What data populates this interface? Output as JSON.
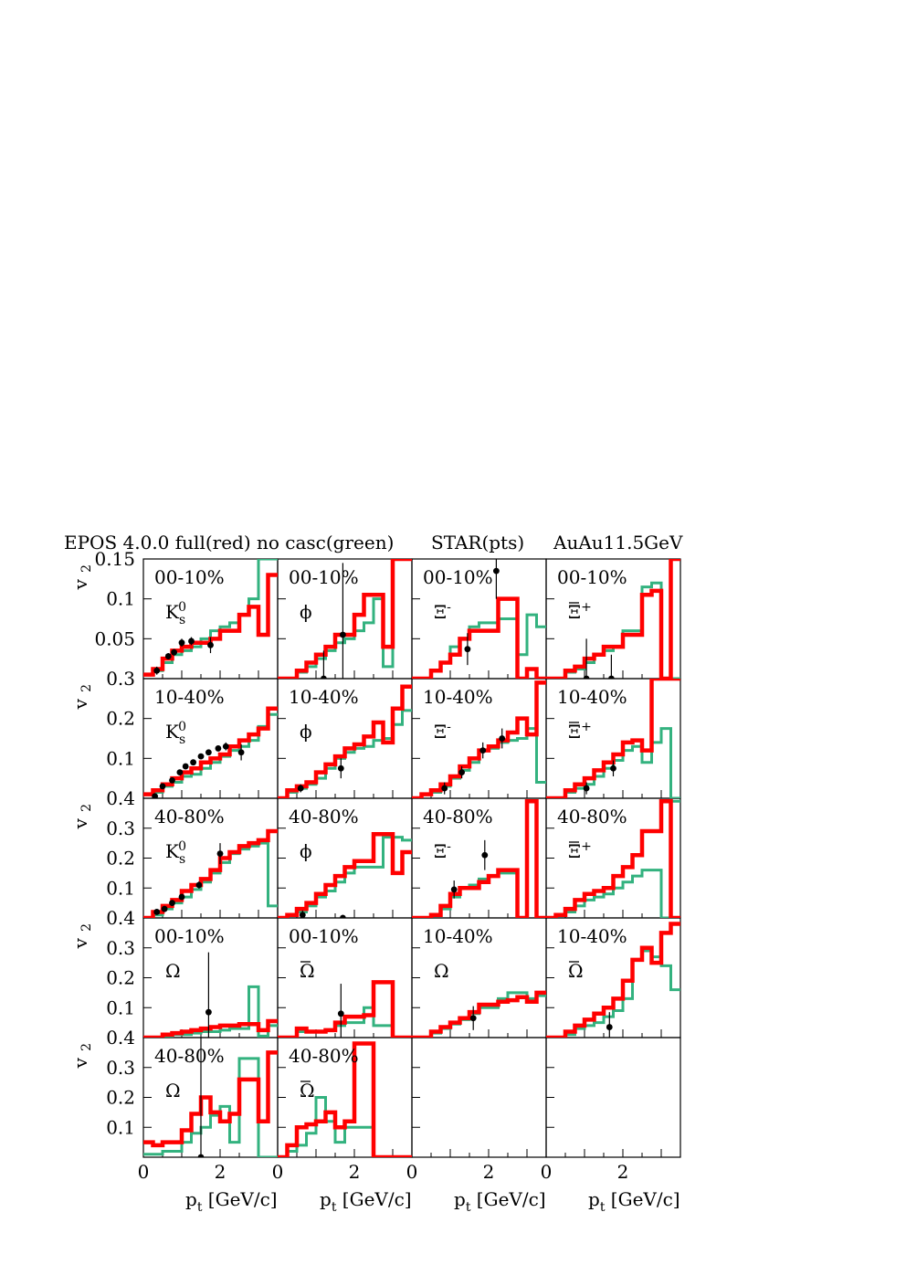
{
  "header": {
    "left": "EPOS 4.0.0   full(red)  no casc(green)",
    "middle": "STAR(pts)",
    "right": "AuAu11.5GeV"
  },
  "colors": {
    "full": "#ff0000",
    "nocasc": "#33b27f",
    "points": "#000000"
  },
  "axes": {
    "ylabel": "v",
    "ylabel_sub": "2",
    "xlabel": "p",
    "xlabel_sub": "t",
    "xlabel_unit": " [GeV/c]",
    "x_ticks": [
      "0",
      "2"
    ],
    "x_last_col_ticks": [
      "0",
      "2"
    ],
    "row_tick_labels": [
      [
        "0.15",
        "0.1",
        "0.05",
        "0.3"
      ],
      [
        "0.2",
        "0.1",
        "0.4"
      ],
      [
        "0.3",
        "0.2",
        "0.1",
        "0.4"
      ],
      [
        "0.3",
        "0.2",
        "0.1",
        "0.4"
      ],
      [
        "0.3",
        "0.2",
        "0.1"
      ]
    ]
  },
  "chart_data": {
    "type": "bar",
    "description_kind": "histogram grid",
    "x_bin_edges": [
      0,
      0.25,
      0.5,
      0.75,
      1.0,
      1.25,
      1.5,
      1.75,
      2.0,
      2.25,
      2.5,
      2.75,
      3.0,
      3.25,
      3.5
    ],
    "xlim": [
      0,
      3.5
    ],
    "rows": [
      {
        "ylim": [
          0,
          0.15
        ],
        "yticks": [
          0.05,
          0.1,
          0.15
        ]
      },
      {
        "ylim": [
          0,
          0.3
        ],
        "yticks": [
          0.1,
          0.2
        ]
      },
      {
        "ylim": [
          0,
          0.4
        ],
        "yticks": [
          0.1,
          0.2,
          0.3
        ]
      },
      {
        "ylim": [
          0,
          0.4
        ],
        "yticks": [
          0.1,
          0.2,
          0.3
        ]
      },
      {
        "ylim": [
          0,
          0.4
        ],
        "yticks": [
          0.1,
          0.2,
          0.3
        ]
      }
    ],
    "panels": [
      {
        "row": 0,
        "col": 0,
        "centrality": "00-10%",
        "particle": "K",
        "sub": "s",
        "sup": "0",
        "full": [
          0.005,
          0.012,
          0.025,
          0.035,
          0.04,
          0.045,
          0.045,
          0.05,
          0.06,
          0.06,
          0.08,
          0.09,
          0.055,
          0.13
        ],
        "nocasc": [
          0.005,
          0.01,
          0.02,
          0.03,
          0.035,
          0.04,
          0.05,
          0.06,
          0.065,
          0.07,
          0.08,
          0.1,
          0.15,
          0.15
        ],
        "points": [
          [
            0.35,
            0.01,
            0.005
          ],
          [
            0.65,
            0.028,
            0.004
          ],
          [
            0.8,
            0.033,
            0.004
          ],
          [
            1.0,
            0.045,
            0.005
          ],
          [
            1.25,
            0.047,
            0.005
          ],
          [
            1.75,
            0.042,
            0.01
          ]
        ]
      },
      {
        "row": 0,
        "col": 1,
        "centrality": "00-10%",
        "particle": "ϕ",
        "sub": "",
        "sup": "",
        "full": [
          0.0,
          0.0,
          0.01,
          0.02,
          0.03,
          0.04,
          0.055,
          0.055,
          0.08,
          0.105,
          0.105,
          0.04,
          0.15,
          0.2
        ],
        "nocasc": [
          0.0,
          0.0,
          0.008,
          0.015,
          0.025,
          0.035,
          0.045,
          0.05,
          0.06,
          0.07,
          0.1,
          0.015,
          0.15,
          0.2
        ],
        "points": [
          [
            1.2,
            0.0,
            0.035
          ],
          [
            1.7,
            0.055,
            0.09
          ]
        ]
      },
      {
        "row": 0,
        "col": 2,
        "centrality": "00-10%",
        "particle": "Ξ",
        "sub": "",
        "sup": "-",
        "full": [
          0.0,
          0.0,
          0.01,
          0.02,
          0.03,
          0.05,
          0.06,
          0.06,
          0.06,
          0.1,
          0.1,
          0.0,
          0.012,
          0.0
        ],
        "nocasc": [
          0.0,
          0.0,
          0.01,
          0.02,
          0.04,
          0.05,
          0.065,
          0.07,
          0.07,
          0.075,
          0.075,
          0.03,
          0.08,
          0.065
        ],
        "points": [
          [
            1.45,
            0.037,
            0.02
          ],
          [
            2.2,
            0.135,
            0.035
          ]
        ]
      },
      {
        "row": 0,
        "col": 3,
        "centrality": "00-10%",
        "particle": "Ξ",
        "sub": "",
        "sup": "+",
        "bar": true,
        "full": [
          0.0,
          0.0,
          0.01,
          0.015,
          0.025,
          0.03,
          0.04,
          0.04,
          0.055,
          0.055,
          0.105,
          0.11,
          0.0,
          0.15
        ],
        "nocasc": [
          0.0,
          0.0,
          0.008,
          0.012,
          0.02,
          0.03,
          0.035,
          0.04,
          0.06,
          0.06,
          0.115,
          0.12,
          0.0,
          0.0
        ],
        "points": [
          [
            1.05,
            0.0,
            0.05
          ],
          [
            1.7,
            0.0,
            0.03
          ]
        ]
      },
      {
        "row": 1,
        "col": 0,
        "centrality": "10-40%",
        "particle": "K",
        "sub": "s",
        "sup": "0",
        "full": [
          0.01,
          0.02,
          0.035,
          0.05,
          0.065,
          0.075,
          0.09,
          0.1,
          0.11,
          0.13,
          0.145,
          0.16,
          0.175,
          0.225
        ],
        "nocasc": [
          0.01,
          0.015,
          0.03,
          0.04,
          0.055,
          0.06,
          0.075,
          0.09,
          0.105,
          0.12,
          0.13,
          0.145,
          0.18,
          0.21
        ],
        "points": [
          [
            0.3,
            0.005,
            0.004
          ],
          [
            0.5,
            0.03,
            0.004
          ],
          [
            0.75,
            0.045,
            0.004
          ],
          [
            0.95,
            0.065,
            0.004
          ],
          [
            1.1,
            0.08,
            0.004
          ],
          [
            1.3,
            0.09,
            0.005
          ],
          [
            1.5,
            0.105,
            0.005
          ],
          [
            1.7,
            0.115,
            0.006
          ],
          [
            1.95,
            0.125,
            0.007
          ],
          [
            2.15,
            0.13,
            0.01
          ],
          [
            2.55,
            0.115,
            0.02
          ]
        ]
      },
      {
        "row": 1,
        "col": 1,
        "centrality": "10-40%",
        "particle": "ϕ",
        "sub": "",
        "sup": "",
        "full": [
          0.0,
          0.02,
          0.03,
          0.04,
          0.065,
          0.085,
          0.105,
          0.125,
          0.135,
          0.155,
          0.19,
          0.14,
          0.225,
          0.28
        ],
        "nocasc": [
          0.0,
          0.015,
          0.025,
          0.035,
          0.05,
          0.075,
          0.1,
          0.115,
          0.125,
          0.13,
          0.145,
          0.15,
          0.185,
          0.22
        ],
        "points": [
          [
            0.6,
            0.025,
            0.01
          ],
          [
            1.65,
            0.075,
            0.025
          ]
        ]
      },
      {
        "row": 1,
        "col": 2,
        "centrality": "10-40%",
        "particle": "Ξ",
        "sub": "",
        "sup": "-",
        "full": [
          0.0,
          0.01,
          0.02,
          0.035,
          0.055,
          0.08,
          0.1,
          0.12,
          0.13,
          0.145,
          0.165,
          0.2,
          0.16,
          0.29
        ],
        "nocasc": [
          0.0,
          0.01,
          0.015,
          0.03,
          0.05,
          0.07,
          0.09,
          0.12,
          0.125,
          0.14,
          0.145,
          0.15,
          0.175,
          0.04
        ],
        "points": [
          [
            0.85,
            0.025,
            0.015
          ],
          [
            1.3,
            0.065,
            0.015
          ],
          [
            1.85,
            0.12,
            0.02
          ],
          [
            2.35,
            0.15,
            0.025
          ]
        ]
      },
      {
        "row": 1,
        "col": 3,
        "centrality": "10-40%",
        "particle": "Ξ",
        "sub": "",
        "sup": "+",
        "bar": true,
        "full": [
          0.0,
          0.0,
          0.02,
          0.035,
          0.05,
          0.07,
          0.09,
          0.11,
          0.14,
          0.145,
          0.12,
          0.3,
          0.3,
          0.3
        ],
        "nocasc": [
          0.0,
          0.0,
          0.015,
          0.025,
          0.035,
          0.055,
          0.075,
          0.095,
          0.12,
          0.13,
          0.09,
          0.14,
          0.175,
          0.0
        ],
        "points": [
          [
            1.05,
            0.025,
            0.015
          ],
          [
            1.75,
            0.075,
            0.02
          ]
        ]
      },
      {
        "row": 2,
        "col": 0,
        "centrality": "40-80%",
        "particle": "K",
        "sub": "s",
        "sup": "0",
        "full": [
          0.0,
          0.02,
          0.04,
          0.06,
          0.09,
          0.11,
          0.13,
          0.16,
          0.2,
          0.22,
          0.24,
          0.25,
          0.26,
          0.29
        ],
        "nocasc": [
          0.0,
          0.01,
          0.03,
          0.05,
          0.07,
          0.095,
          0.12,
          0.15,
          0.185,
          0.215,
          0.23,
          0.24,
          0.25,
          0.04
        ],
        "points": [
          [
            0.35,
            0.02,
            0.008
          ],
          [
            0.55,
            0.03,
            0.008
          ],
          [
            0.75,
            0.05,
            0.01
          ],
          [
            1.0,
            0.07,
            0.01
          ],
          [
            1.45,
            0.11,
            0.012
          ],
          [
            2.0,
            0.215,
            0.035
          ]
        ]
      },
      {
        "row": 2,
        "col": 1,
        "centrality": "40-80%",
        "particle": "ϕ",
        "sub": "",
        "sup": "",
        "full": [
          0.0,
          0.01,
          0.03,
          0.05,
          0.08,
          0.11,
          0.14,
          0.17,
          0.19,
          0.19,
          0.28,
          0.28,
          0.15,
          0.22
        ],
        "nocasc": [
          0.0,
          0.01,
          0.02,
          0.04,
          0.07,
          0.09,
          0.12,
          0.15,
          0.17,
          0.17,
          0.17,
          0.27,
          0.27,
          0.26
        ],
        "points": [
          [
            0.65,
            0.01,
            0.015
          ],
          [
            1.7,
            0.0,
            0.01
          ]
        ]
      },
      {
        "row": 2,
        "col": 2,
        "centrality": "40-80%",
        "particle": "Ξ",
        "sub": "",
        "sup": "-",
        "full": [
          0.0,
          0.0,
          0.01,
          0.04,
          0.08,
          0.1,
          0.1,
          0.12,
          0.14,
          0.16,
          0.16,
          0.0,
          0.39,
          0.0
        ],
        "nocasc": [
          0.0,
          0.0,
          0.01,
          0.03,
          0.07,
          0.1,
          0.11,
          0.13,
          0.14,
          0.15,
          0.15,
          0.0,
          0.39,
          0.0
        ],
        "points": [
          [
            1.1,
            0.095,
            0.03
          ],
          [
            1.9,
            0.21,
            0.05
          ]
        ]
      },
      {
        "row": 2,
        "col": 3,
        "centrality": "40-80%",
        "particle": "Ξ",
        "sub": "",
        "sup": "+",
        "bar": true,
        "full": [
          0.0,
          0.01,
          0.03,
          0.06,
          0.08,
          0.09,
          0.1,
          0.14,
          0.17,
          0.21,
          0.29,
          0.29,
          0.39,
          0.0
        ],
        "nocasc": [
          0.0,
          0.01,
          0.02,
          0.04,
          0.06,
          0.07,
          0.08,
          0.1,
          0.12,
          0.14,
          0.16,
          0.16,
          0.0,
          0.39
        ],
        "points": []
      },
      {
        "row": 3,
        "col": 0,
        "centrality": "00-10%",
        "particle": "Ω",
        "sub": "",
        "sup": "",
        "full": [
          0.0,
          0.0,
          0.01,
          0.015,
          0.02,
          0.025,
          0.03,
          0.035,
          0.04,
          0.04,
          0.045,
          0.045,
          0.025,
          0.055
        ],
        "nocasc": [
          0.0,
          0.0,
          0.005,
          0.01,
          0.01,
          0.015,
          0.02,
          0.02,
          0.025,
          0.03,
          0.03,
          0.17,
          0.005,
          0.04
        ],
        "points": [
          [
            1.7,
            0.085,
            0.2
          ]
        ]
      },
      {
        "row": 3,
        "col": 1,
        "centrality": "00-10%",
        "particle": "Ω",
        "sub": "",
        "sup": "",
        "bar": true,
        "full": [
          0.0,
          0.0,
          0.03,
          0.02,
          0.02,
          0.025,
          0.05,
          0.07,
          0.07,
          0.075,
          0.185,
          0.185,
          0.0,
          0.0
        ],
        "nocasc": [
          0.0,
          0.0,
          0.02,
          0.02,
          0.02,
          0.025,
          0.04,
          0.05,
          0.05,
          0.1,
          0.04,
          0.04,
          0.0,
          0.0
        ],
        "points": [
          [
            1.65,
            0.08,
            0.1
          ]
        ]
      },
      {
        "row": 3,
        "col": 2,
        "centrality": "10-40%",
        "particle": "Ω",
        "sub": "",
        "sup": "",
        "full": [
          0.0,
          0.0,
          0.02,
          0.035,
          0.05,
          0.065,
          0.085,
          0.11,
          0.11,
          0.12,
          0.125,
          0.135,
          0.12,
          0.15
        ],
        "nocasc": [
          0.0,
          0.0,
          0.015,
          0.03,
          0.045,
          0.06,
          0.08,
          0.1,
          0.1,
          0.13,
          0.15,
          0.15,
          0.13,
          0.14
        ],
        "points": [
          [
            1.6,
            0.065,
            0.04
          ]
        ]
      },
      {
        "row": 3,
        "col": 3,
        "centrality": "10-40%",
        "particle": "Ω",
        "sub": "",
        "sup": "",
        "bar": true,
        "full": [
          0.0,
          0.0,
          0.02,
          0.04,
          0.06,
          0.08,
          0.1,
          0.13,
          0.19,
          0.26,
          0.3,
          0.25,
          0.35,
          0.38
        ],
        "nocasc": [
          0.0,
          0.0,
          0.01,
          0.03,
          0.04,
          0.05,
          0.07,
          0.09,
          0.13,
          0.26,
          0.29,
          0.27,
          0.24,
          0.16
        ],
        "points": [
          [
            1.65,
            0.035,
            0.05
          ]
        ]
      },
      {
        "row": 4,
        "col": 0,
        "centrality": "40-80%",
        "particle": "Ω",
        "sub": "",
        "sup": "",
        "full": [
          0.05,
          0.04,
          0.05,
          0.05,
          0.09,
          0.145,
          0.2,
          0.15,
          0.12,
          0.145,
          0.26,
          0.26,
          0.12,
          0.35
        ],
        "nocasc": [
          0.01,
          0.01,
          0.02,
          0.02,
          0.05,
          0.08,
          0.1,
          0.14,
          0.17,
          0.05,
          0.33,
          0.33,
          0.0,
          0.0
        ],
        "points": [
          [
            1.5,
            0.0,
            0.4
          ]
        ]
      },
      {
        "row": 4,
        "col": 1,
        "centrality": "40-80%",
        "particle": "Ω",
        "sub": "",
        "sup": "",
        "bar": true,
        "full": [
          0.0,
          0.04,
          0.1,
          0.11,
          0.12,
          0.15,
          0.1,
          0.12,
          0.38,
          0.38,
          0.0,
          0.0,
          0.0,
          0.0
        ],
        "nocasc": [
          0.0,
          0.02,
          0.04,
          0.08,
          0.2,
          0.12,
          0.05,
          0.1,
          0.1,
          0.1,
          0.0,
          0.0,
          0.0,
          0.0
        ],
        "points": []
      },
      {
        "row": 4,
        "col": 2,
        "centrality": "",
        "particle": "",
        "sub": "",
        "sup": "",
        "full": [],
        "nocasc": [],
        "points": []
      },
      {
        "row": 4,
        "col": 3,
        "centrality": "",
        "particle": "",
        "sub": "",
        "sup": "",
        "full": [],
        "nocasc": [],
        "points": []
      }
    ]
  }
}
